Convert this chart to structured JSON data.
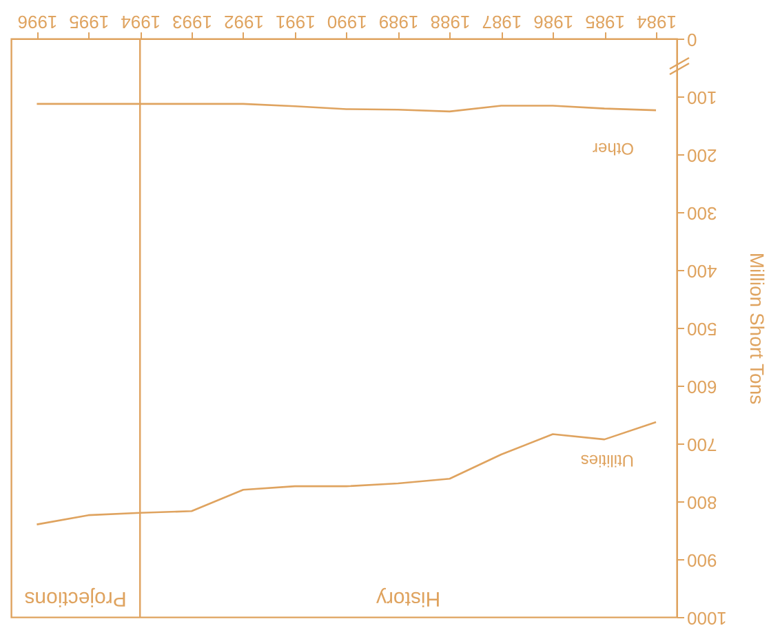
{
  "chart_data": {
    "type": "line",
    "ylabel": "Million Short Tons",
    "x": [
      1984,
      1985,
      1986,
      1987,
      1988,
      1989,
      1990,
      1991,
      1992,
      1993,
      1994,
      1995,
      1996
    ],
    "series": [
      {
        "name": "Utilities",
        "color": "#dfa35f",
        "values": [
          663,
          693,
          684,
          719,
          761,
          769,
          774,
          774,
          780,
          817,
          820,
          824,
          840
        ]
      },
      {
        "name": "Other",
        "color": "#dfa35f",
        "values": [
          124,
          121,
          116,
          116,
          126,
          123,
          122,
          117,
          113,
          113,
          113,
          113,
          113
        ]
      }
    ],
    "xlim": [
      1996.5,
      1983.6
    ],
    "xticks": [
      1984,
      1985,
      1986,
      1987,
      1988,
      1989,
      1990,
      1991,
      1992,
      1993,
      1994,
      1995,
      1996
    ],
    "ylim": [
      1000,
      0
    ],
    "yticks": [
      0,
      100,
      200,
      300,
      400,
      500,
      600,
      700,
      800,
      900,
      1000
    ],
    "ref_lines": [
      {
        "axis": "x",
        "value": 1994,
        "color": "#dfa35f"
      }
    ],
    "annotations": [
      "Projections",
      "History"
    ],
    "grid": false,
    "marker": "none",
    "line_style": "solid"
  }
}
